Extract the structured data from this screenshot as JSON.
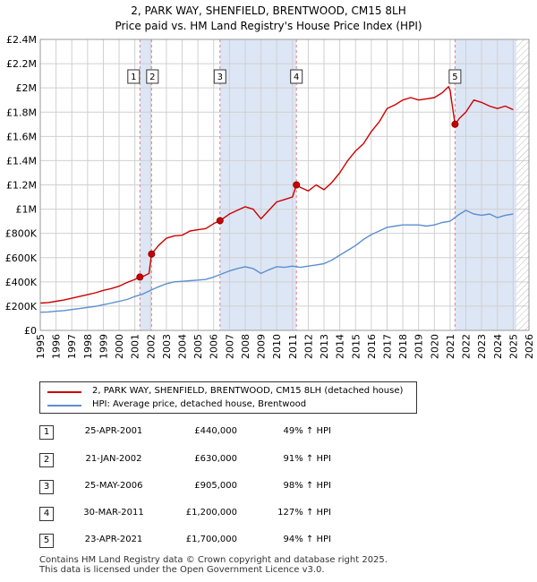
{
  "title_line1": "2, PARK WAY, SHENFIELD, BRENTWOOD, CM15 8LH",
  "title_line2": "Price paid vs. HM Land Registry's House Price Index (HPI)",
  "legend": {
    "red_label": "2, PARK WAY, SHENFIELD, BRENTWOOD, CM15 8LH (detached house)",
    "blue_label": "HPI: Average price, detached house, Brentwood"
  },
  "colors": {
    "red": "#cc0000",
    "blue": "#5b8fd0",
    "shade": "#dde6f5",
    "grid": "#d0d0d0",
    "vline": "#e08080"
  },
  "transactions": [
    {
      "num": "1",
      "date": "25-APR-2001",
      "price": "£440,000",
      "hpi": "49% ↑ HPI"
    },
    {
      "num": "2",
      "date": "21-JAN-2002",
      "price": "£630,000",
      "hpi": "91% ↑ HPI"
    },
    {
      "num": "3",
      "date": "25-MAY-2006",
      "price": "£905,000",
      "hpi": "98% ↑ HPI"
    },
    {
      "num": "4",
      "date": "30-MAR-2011",
      "price": "£1,200,000",
      "hpi": "127% ↑ HPI"
    },
    {
      "num": "5",
      "date": "23-APR-2021",
      "price": "£1,700,000",
      "hpi": "94% ↑ HPI"
    }
  ],
  "footer_line1": "Contains HM Land Registry data © Crown copyright and database right 2025.",
  "footer_line2": "This data is licensed under the Open Government Licence v3.0.",
  "chart_data": {
    "type": "line",
    "title": "2, PARK WAY, SHENFIELD, BRENTWOOD, CM15 8LH",
    "subtitle": "Price paid vs. HM Land Registry's House Price Index (HPI)",
    "xlabel": "",
    "ylabel": "",
    "xlim": [
      1995,
      2026
    ],
    "ylim": [
      0,
      2400000
    ],
    "x_ticks": [
      1995,
      1996,
      1997,
      1998,
      1999,
      2000,
      2001,
      2002,
      2003,
      2004,
      2005,
      2006,
      2007,
      2008,
      2009,
      2010,
      2011,
      2012,
      2013,
      2014,
      2015,
      2016,
      2017,
      2018,
      2019,
      2020,
      2021,
      2022,
      2023,
      2024,
      2025,
      2026
    ],
    "y_ticks": [
      {
        "value": 0,
        "label": "£0"
      },
      {
        "value": 200000,
        "label": "£200K"
      },
      {
        "value": 400000,
        "label": "£400K"
      },
      {
        "value": 600000,
        "label": "£600K"
      },
      {
        "value": 800000,
        "label": "£800K"
      },
      {
        "value": 1000000,
        "label": "£1M"
      },
      {
        "value": 1200000,
        "label": "£1.2M"
      },
      {
        "value": 1400000,
        "label": "£1.4M"
      },
      {
        "value": 1600000,
        "label": "£1.6M"
      },
      {
        "value": 1800000,
        "label": "£1.8M"
      },
      {
        "value": 2000000,
        "label": "£2M"
      },
      {
        "value": 2200000,
        "label": "£2.2M"
      },
      {
        "value": 2400000,
        "label": "£2.4M"
      }
    ],
    "grid": true,
    "hatch_from": 2025.2,
    "series": [
      {
        "name": "2, PARK WAY, SHENFIELD, BRENTWOOD, CM15 8LH (detached house)",
        "color": "#cc0000",
        "x": [
          1995.0,
          1995.5,
          1996.0,
          1996.5,
          1997.0,
          1997.5,
          1998.0,
          1998.5,
          1999.0,
          1999.5,
          2000.0,
          2000.5,
          2001.0,
          2001.32,
          2001.6,
          2001.9,
          2002.06,
          2002.5,
          2003.0,
          2003.5,
          2004.0,
          2004.5,
          2005.0,
          2005.5,
          2006.0,
          2006.4,
          2007.0,
          2007.5,
          2008.0,
          2008.5,
          2009.0,
          2009.5,
          2010.0,
          2010.5,
          2011.0,
          2011.25,
          2011.5,
          2012.0,
          2012.5,
          2013.0,
          2013.5,
          2014.0,
          2014.5,
          2015.0,
          2015.5,
          2016.0,
          2016.5,
          2017.0,
          2017.5,
          2018.0,
          2018.5,
          2019.0,
          2019.5,
          2020.0,
          2020.5,
          2020.9,
          2021.0,
          2021.31,
          2021.6,
          2022.0,
          2022.5,
          2023.0,
          2023.5,
          2024.0,
          2024.5,
          2025.0
        ],
        "y": [
          225000,
          230000,
          240000,
          250000,
          265000,
          280000,
          295000,
          310000,
          330000,
          345000,
          365000,
          395000,
          420000,
          440000,
          450000,
          470000,
          630000,
          700000,
          760000,
          780000,
          785000,
          820000,
          830000,
          840000,
          880000,
          905000,
          960000,
          990000,
          1020000,
          1000000,
          920000,
          990000,
          1060000,
          1080000,
          1100000,
          1200000,
          1180000,
          1150000,
          1200000,
          1160000,
          1220000,
          1300000,
          1400000,
          1480000,
          1540000,
          1640000,
          1720000,
          1830000,
          1860000,
          1900000,
          1920000,
          1900000,
          1910000,
          1920000,
          1960000,
          2010000,
          1980000,
          1700000,
          1750000,
          1800000,
          1900000,
          1880000,
          1850000,
          1830000,
          1850000,
          1820000
        ]
      },
      {
        "name": "HPI: Average price, detached house, Brentwood",
        "color": "#5b8fd0",
        "x": [
          1995.0,
          1995.5,
          1996.0,
          1996.5,
          1997.0,
          1997.5,
          1998.0,
          1998.5,
          1999.0,
          1999.5,
          2000.0,
          2000.5,
          2001.0,
          2001.5,
          2002.0,
          2002.5,
          2003.0,
          2003.5,
          2004.0,
          2004.5,
          2005.0,
          2005.5,
          2006.0,
          2006.5,
          2007.0,
          2007.5,
          2008.0,
          2008.5,
          2009.0,
          2009.5,
          2010.0,
          2010.5,
          2011.0,
          2011.5,
          2012.0,
          2012.5,
          2013.0,
          2013.5,
          2014.0,
          2014.5,
          2015.0,
          2015.5,
          2016.0,
          2016.5,
          2017.0,
          2017.5,
          2018.0,
          2018.5,
          2019.0,
          2019.5,
          2020.0,
          2020.5,
          2021.0,
          2021.5,
          2022.0,
          2022.5,
          2023.0,
          2023.5,
          2024.0,
          2024.5,
          2025.0
        ],
        "y": [
          150000,
          152000,
          158000,
          163000,
          172000,
          180000,
          190000,
          198000,
          212000,
          225000,
          240000,
          255000,
          280000,
          300000,
          330000,
          360000,
          385000,
          400000,
          405000,
          410000,
          415000,
          420000,
          440000,
          465000,
          490000,
          510000,
          525000,
          510000,
          470000,
          500000,
          525000,
          520000,
          530000,
          520000,
          530000,
          540000,
          550000,
          580000,
          620000,
          660000,
          700000,
          750000,
          790000,
          820000,
          850000,
          860000,
          870000,
          870000,
          870000,
          860000,
          870000,
          890000,
          900000,
          950000,
          990000,
          960000,
          950000,
          960000,
          930000,
          950000,
          960000
        ]
      }
    ],
    "markers": [
      {
        "label": "1",
        "x": 2001.32,
        "y": 440000
      },
      {
        "label": "2",
        "x": 2002.06,
        "y": 630000
      },
      {
        "label": "3",
        "x": 2006.4,
        "y": 905000
      },
      {
        "label": "4",
        "x": 2011.25,
        "y": 1200000
      },
      {
        "label": "5",
        "x": 2021.31,
        "y": 1700000
      }
    ]
  }
}
